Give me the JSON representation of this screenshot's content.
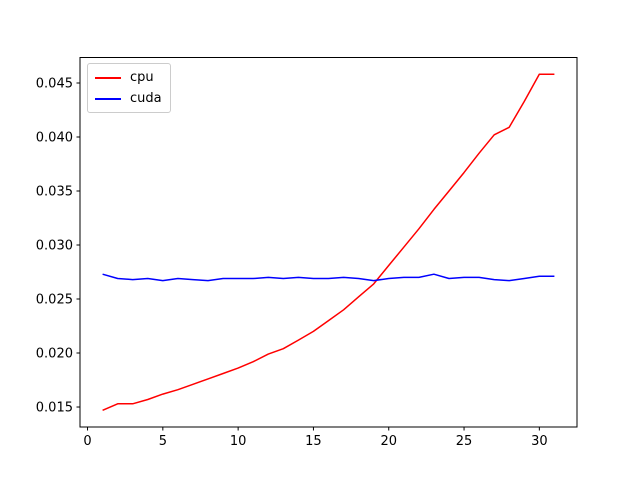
{
  "chart_data": {
    "type": "line",
    "title": "",
    "xlabel": "",
    "ylabel": "",
    "x": [
      1,
      2,
      3,
      4,
      5,
      6,
      7,
      8,
      9,
      10,
      11,
      12,
      13,
      14,
      15,
      16,
      17,
      18,
      19,
      20,
      21,
      22,
      23,
      24,
      25,
      26,
      27,
      28,
      29,
      30,
      31
    ],
    "series": [
      {
        "name": "cpu",
        "color": "#ff0000",
        "values": [
          0.0147,
          0.0153,
          0.0153,
          0.0157,
          0.0162,
          0.0166,
          0.0171,
          0.0176,
          0.0181,
          0.0186,
          0.0192,
          0.0199,
          0.0204,
          0.0212,
          0.022,
          0.023,
          0.024,
          0.0252,
          0.0264,
          0.0281,
          0.0298,
          0.0315,
          0.0333,
          0.035,
          0.0367,
          0.0385,
          0.0402,
          0.0409,
          0.0433,
          0.0458,
          0.0458
        ]
      },
      {
        "name": "cuda",
        "color": "#0000ff",
        "values": [
          0.0273,
          0.0269,
          0.0268,
          0.0269,
          0.0267,
          0.0269,
          0.0268,
          0.0267,
          0.0269,
          0.0269,
          0.0269,
          0.027,
          0.0269,
          0.027,
          0.0269,
          0.0269,
          0.027,
          0.0269,
          0.0267,
          0.0269,
          0.027,
          0.027,
          0.0273,
          0.0269,
          0.027,
          0.027,
          0.0268,
          0.0267,
          0.0269,
          0.0271,
          0.0271
        ]
      }
    ],
    "xlim": [
      -0.5,
      32.5
    ],
    "ylim": [
      0.01315,
      0.04736
    ],
    "xticks": [
      0,
      5,
      10,
      15,
      20,
      25,
      30
    ],
    "xtick_labels": [
      "0",
      "5",
      "10",
      "15",
      "20",
      "25",
      "30"
    ],
    "yticks": [
      0.015,
      0.02,
      0.025,
      0.03,
      0.035,
      0.04,
      0.045
    ],
    "ytick_labels": [
      "0.015",
      "0.020",
      "0.025",
      "0.030",
      "0.035",
      "0.040",
      "0.045"
    ],
    "grid": false,
    "legend_position": "upper left",
    "background_color": "#ffffff",
    "axis_color": "#000000",
    "legend_border_color": "#cccccc"
  },
  "legend": {
    "items": [
      {
        "label": "cpu",
        "color": "#ff0000"
      },
      {
        "label": "cuda",
        "color": "#0000ff"
      }
    ]
  }
}
